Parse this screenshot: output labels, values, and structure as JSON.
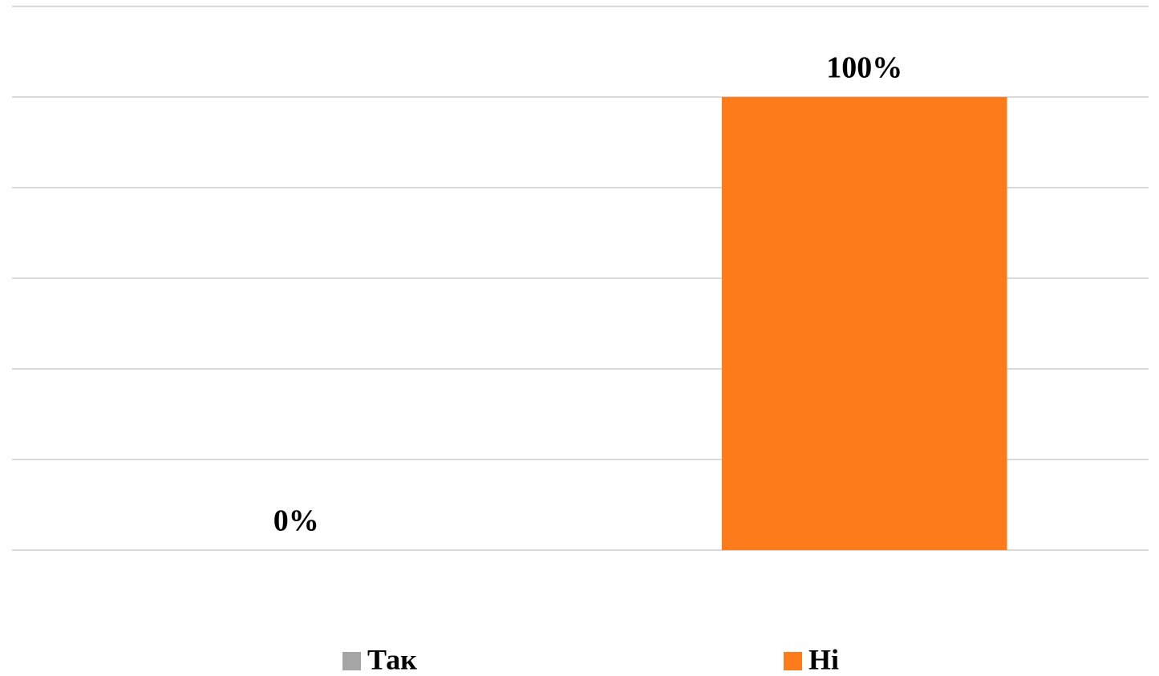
{
  "chart_data": {
    "type": "bar",
    "categories": [
      null
    ],
    "series": [
      {
        "name": "Так",
        "color": "#a5a5a5",
        "values": [
          0
        ],
        "value_labels": [
          "0%"
        ]
      },
      {
        "name": "Ні",
        "color": "#fd7b1a",
        "values": [
          100
        ],
        "value_labels": [
          "100%"
        ]
      }
    ],
    "ylim": [
      0,
      120
    ],
    "yticks": [
      0,
      20,
      40,
      60,
      80,
      100,
      120
    ],
    "grid": true,
    "legend": "bottom"
  }
}
